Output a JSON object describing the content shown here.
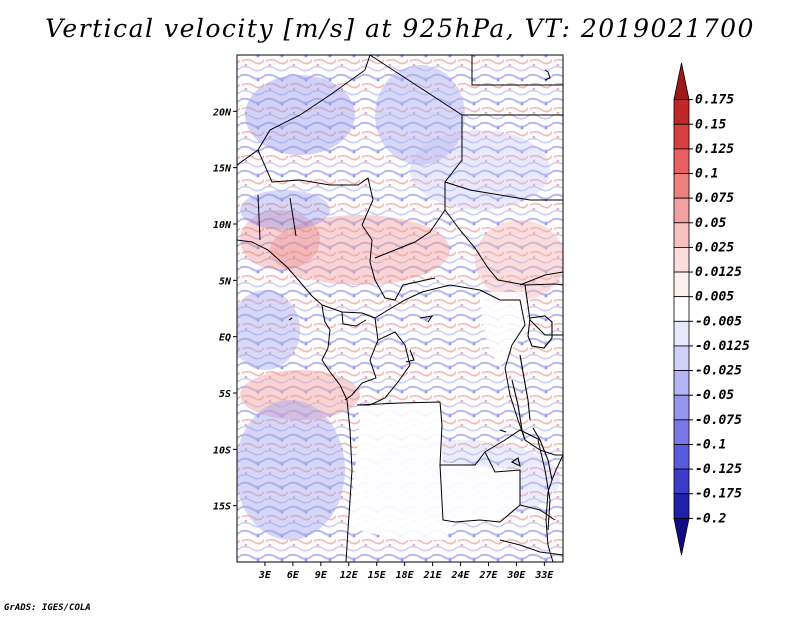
{
  "title": "Vertical velocity [m/s] at 925hPa, VT: 2019021700",
  "credit": "GrADS: IGES/COLA",
  "map": {
    "lon_range": [
      0,
      35
    ],
    "lat_range": [
      -20,
      25
    ],
    "x_ticks": [
      "3E",
      "6E",
      "9E",
      "12E",
      "15E",
      "18E",
      "21E",
      "24E",
      "27E",
      "30E",
      "33E"
    ],
    "y_ticks": [
      "20N",
      "15N",
      "10N",
      "5N",
      "EQ",
      "5S",
      "10S",
      "15S"
    ]
  },
  "colorbar": {
    "levels": [
      "0.175",
      "0.15",
      "0.125",
      "0.1",
      "0.075",
      "0.05",
      "0.025",
      "0.0125",
      "0.005",
      "-0.005",
      "-0.0125",
      "-0.025",
      "-0.05",
      "-0.075",
      "-0.1",
      "-0.125",
      "-0.175",
      "-0.2"
    ],
    "colors": [
      "#a01818",
      "#c02828",
      "#d84040",
      "#e86060",
      "#ee8080",
      "#f4a0a0",
      "#f8c0c0",
      "#fcdcdc",
      "#fff0f0",
      "#ffffff",
      "#e8e8fc",
      "#d0d0f8",
      "#b4b4f4",
      "#9696ee",
      "#7878e6",
      "#5a5adc",
      "#3c3cc8",
      "#2020a8",
      "#100c88"
    ]
  }
}
